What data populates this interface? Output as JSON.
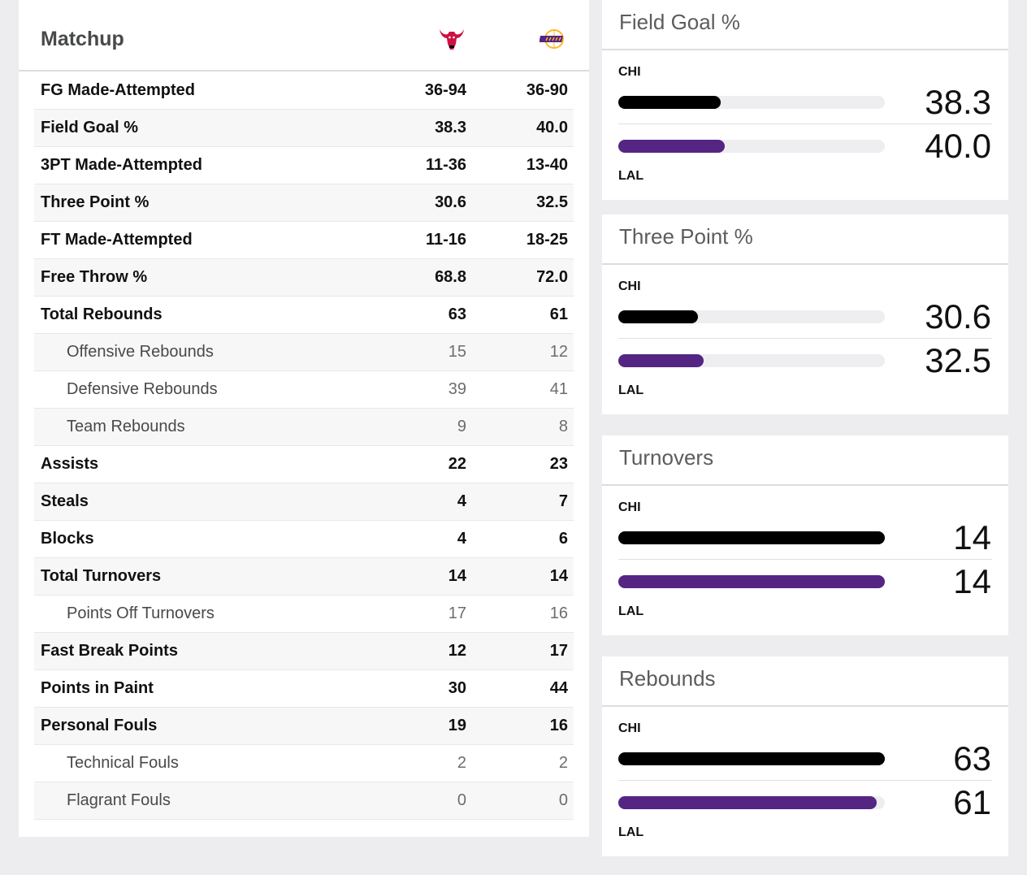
{
  "matchup": {
    "title": "Matchup",
    "teams": [
      "CHI",
      "LAL"
    ],
    "rows": [
      {
        "label": "FG Made-Attempted",
        "chi": "36-94",
        "lal": "36-90",
        "sub": false
      },
      {
        "label": "Field Goal %",
        "chi": "38.3",
        "lal": "40.0",
        "sub": false
      },
      {
        "label": "3PT Made-Attempted",
        "chi": "11-36",
        "lal": "13-40",
        "sub": false
      },
      {
        "label": "Three Point %",
        "chi": "30.6",
        "lal": "32.5",
        "sub": false
      },
      {
        "label": "FT Made-Attempted",
        "chi": "11-16",
        "lal": "18-25",
        "sub": false
      },
      {
        "label": "Free Throw %",
        "chi": "68.8",
        "lal": "72.0",
        "sub": false
      },
      {
        "label": "Total Rebounds",
        "chi": "63",
        "lal": "61",
        "sub": false
      },
      {
        "label": "Offensive Rebounds",
        "chi": "15",
        "lal": "12",
        "sub": true
      },
      {
        "label": "Defensive Rebounds",
        "chi": "39",
        "lal": "41",
        "sub": true
      },
      {
        "label": "Team Rebounds",
        "chi": "9",
        "lal": "8",
        "sub": true
      },
      {
        "label": "Assists",
        "chi": "22",
        "lal": "23",
        "sub": false
      },
      {
        "label": "Steals",
        "chi": "4",
        "lal": "7",
        "sub": false
      },
      {
        "label": "Blocks",
        "chi": "4",
        "lal": "6",
        "sub": false
      },
      {
        "label": "Total Turnovers",
        "chi": "14",
        "lal": "14",
        "sub": false
      },
      {
        "label": "Points Off Turnovers",
        "chi": "17",
        "lal": "16",
        "sub": true
      },
      {
        "label": "Fast Break Points",
        "chi": "12",
        "lal": "17",
        "sub": false
      },
      {
        "label": "Points in Paint",
        "chi": "30",
        "lal": "44",
        "sub": false
      },
      {
        "label": "Personal Fouls",
        "chi": "19",
        "lal": "16",
        "sub": false
      },
      {
        "label": "Technical Fouls",
        "chi": "2",
        "lal": "2",
        "sub": true
      },
      {
        "label": "Flagrant Fouls",
        "chi": "0",
        "lal": "0",
        "sub": true
      }
    ]
  },
  "cards": [
    {
      "title": "Field Goal %",
      "team1": "CHI",
      "team2": "LAL",
      "v1": "38.3",
      "v2": "40.0",
      "pct1": 0.383,
      "pct2": 0.4
    },
    {
      "title": "Three Point %",
      "team1": "CHI",
      "team2": "LAL",
      "v1": "30.6",
      "v2": "32.5",
      "pct1": 0.3,
      "pct2": 0.32
    },
    {
      "title": "Turnovers",
      "team1": "CHI",
      "team2": "LAL",
      "v1": "14",
      "v2": "14",
      "pct1": 1.0,
      "pct2": 1.0
    },
    {
      "title": "Rebounds",
      "team1": "CHI",
      "team2": "LAL",
      "v1": "63",
      "v2": "61",
      "pct1": 1.0,
      "pct2": 0.97
    }
  ],
  "colors": {
    "chi": "#000000",
    "lal": "#552583",
    "bulls_red": "#ce1141",
    "lakers_gold": "#fdb927"
  }
}
